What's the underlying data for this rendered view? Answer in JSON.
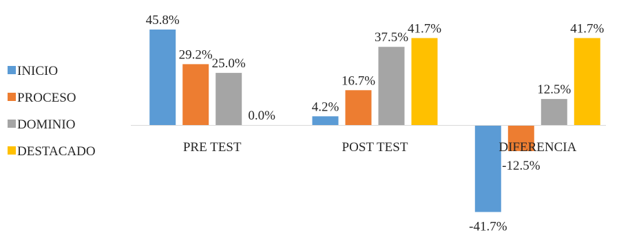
{
  "chart_data": {
    "type": "bar",
    "categories": [
      "PRE TEST",
      "POST TEST",
      "DIFERENCIA"
    ],
    "series": [
      {
        "name": "INICIO",
        "color": "#5B9BD5",
        "values": [
          45.8,
          4.2,
          -41.7
        ],
        "labels": [
          "45.8%",
          "4.2%",
          "-41.7%"
        ]
      },
      {
        "name": "PROCESO",
        "color": "#ED7D31",
        "values": [
          29.2,
          16.7,
          -12.5
        ],
        "labels": [
          "29.2%",
          "16.7%",
          "-12.5%"
        ]
      },
      {
        "name": "DOMINIO",
        "color": "#A5A5A5",
        "values": [
          25.0,
          37.5,
          12.5
        ],
        "labels": [
          "25.0%",
          "37.5%",
          "12.5%"
        ]
      },
      {
        "name": "DESTACADO",
        "color": "#FFC000",
        "values": [
          0.0,
          41.7,
          41.7
        ],
        "labels": [
          "0.0%",
          "41.7%",
          "41.7%"
        ]
      }
    ],
    "value_format": "percent",
    "ylim": [
      -45,
      46
    ],
    "grid": false,
    "legend_position": "left",
    "title": "",
    "xlabel": "",
    "ylabel": ""
  }
}
